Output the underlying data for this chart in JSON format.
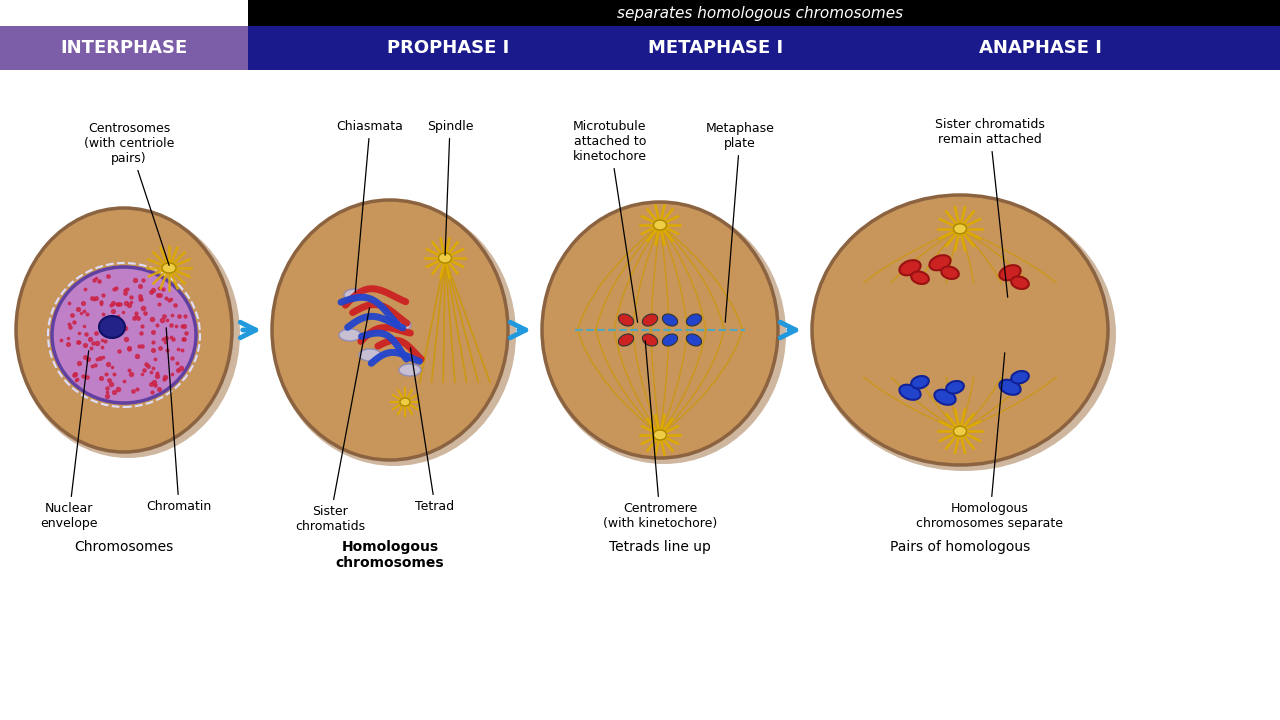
{
  "title_bar_text": "separates homologous chromosomes",
  "title_bar_bg": "#000000",
  "title_bar_text_color": "#ffffff",
  "header_bg_left": "#7b5ea7",
  "header_bg_right": "#1a1a8c",
  "header_text_color": "#ffffff",
  "stage_labels": [
    "INTERPHASE",
    "PROPHASE I",
    "METAPHASE I",
    "ANAPHASE I"
  ],
  "background_color": "#ffffff",
  "cell_bg": "#c8955a",
  "cell_outline": "#8B6340",
  "cell_shadow": "#a07040",
  "arrow_color": "#2299dd",
  "nucleus_fill": "#c080c8",
  "nucleus_edge": "#6040a0",
  "nucleolus_fill": "#222288",
  "spindle_color": "#cc9900",
  "chrom_red": "#cc2222",
  "chrom_blue": "#2244cc",
  "chiasmata_fill": "#c8c8e8",
  "metaphase_plate_color": "#44aacc"
}
